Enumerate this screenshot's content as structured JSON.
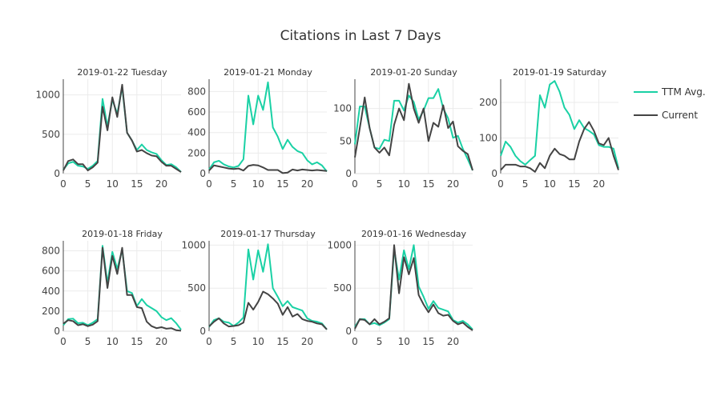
{
  "chart_data": {
    "type": "line",
    "title": "Citations in Last 7 Days",
    "legend": {
      "placement": "top-right",
      "entries": [
        {
          "name": "TTM Avg.",
          "color": "#1ad1a5"
        },
        {
          "name": "Current",
          "color": "#444444"
        }
      ]
    },
    "x": [
      0,
      1,
      2,
      3,
      4,
      5,
      6,
      7,
      8,
      9,
      10,
      11,
      12,
      13,
      14,
      15,
      16,
      17,
      18,
      19,
      20,
      21,
      22,
      23,
      24
    ],
    "xticks": [
      0,
      5,
      10,
      15,
      20
    ],
    "grid": true,
    "panels": [
      {
        "title": "2019-01-22 Tuesday",
        "ylim": [
          0,
          1200
        ],
        "yticks": [
          0,
          500,
          1000
        ],
        "series": [
          {
            "name": "TTM Avg.",
            "values": [
              50,
              130,
              150,
              100,
              90,
              60,
              100,
              160,
              950,
              600,
              940,
              760,
              1100,
              520,
              420,
              300,
              370,
              300,
              270,
              250,
              170,
              110,
              120,
              80,
              20
            ]
          },
          {
            "name": "Current",
            "values": [
              40,
              160,
              180,
              120,
              120,
              40,
              80,
              140,
              850,
              550,
              970,
              720,
              1130,
              520,
              420,
              280,
              300,
              260,
              230,
              220,
              150,
              100,
              100,
              60,
              20
            ]
          }
        ]
      },
      {
        "title": "2019-01-21 Monday",
        "ylim": [
          0,
          920
        ],
        "yticks": [
          0,
          200,
          400,
          600,
          800
        ],
        "series": [
          {
            "name": "TTM Avg.",
            "values": [
              40,
              110,
              125,
              90,
              70,
              60,
              75,
              140,
              760,
              480,
              760,
              620,
              890,
              450,
              360,
              240,
              330,
              260,
              220,
              200,
              130,
              90,
              110,
              80,
              20
            ]
          },
          {
            "name": "Current",
            "values": [
              30,
              80,
              70,
              60,
              50,
              45,
              50,
              30,
              75,
              85,
              80,
              60,
              35,
              35,
              35,
              5,
              10,
              40,
              30,
              40,
              35,
              30,
              35,
              30,
              25
            ]
          }
        ]
      },
      {
        "title": "2019-01-20 Sunday",
        "ylim": [
          0,
          145
        ],
        "yticks": [
          0,
          50,
          100
        ],
        "series": [
          {
            "name": "TTM Avg.",
            "values": [
              45,
              103,
              103,
              70,
              40,
              38,
              52,
              50,
              112,
              112,
              97,
              120,
              110,
              83,
              97,
              116,
              116,
              130,
              100,
              85,
              55,
              58,
              38,
              22,
              5
            ]
          },
          {
            "name": "Current",
            "values": [
              25,
              70,
              117,
              70,
              40,
              32,
              40,
              28,
              75,
              100,
              82,
              138,
              100,
              78,
              100,
              50,
              78,
              72,
              105,
              70,
              80,
              42,
              35,
              30,
              5
            ]
          }
        ]
      },
      {
        "title": "2019-01-19 Saturday",
        "ylim": [
          0,
          265
        ],
        "yticks": [
          0,
          100,
          200
        ],
        "series": [
          {
            "name": "TTM Avg.",
            "values": [
              50,
              90,
              75,
              50,
              35,
              25,
              38,
              50,
              220,
              185,
              250,
              260,
              230,
              185,
              165,
              125,
              150,
              128,
              120,
              110,
              80,
              75,
              75,
              70,
              15
            ]
          },
          {
            "name": "Current",
            "values": [
              10,
              25,
              25,
              25,
              20,
              20,
              15,
              5,
              30,
              15,
              50,
              70,
              55,
              50,
              40,
              40,
              90,
              125,
              145,
              120,
              85,
              80,
              100,
              50,
              10
            ]
          }
        ]
      },
      {
        "title": "2019-01-18 Friday",
        "ylim": [
          0,
          900
        ],
        "yticks": [
          0,
          200,
          400,
          600,
          800
        ],
        "series": [
          {
            "name": "TTM Avg.",
            "values": [
              60,
              120,
              125,
              80,
              85,
              60,
              85,
              120,
              850,
              480,
              790,
              620,
              810,
              400,
              380,
              250,
              320,
              260,
              230,
              200,
              140,
              110,
              130,
              80,
              15
            ]
          },
          {
            "name": "Current",
            "values": [
              75,
              110,
              100,
              60,
              70,
              50,
              65,
              100,
              830,
              430,
              750,
              570,
              830,
              360,
              360,
              240,
              230,
              95,
              50,
              30,
              40,
              25,
              30,
              10,
              5
            ]
          }
        ]
      },
      {
        "title": "2019-01-17 Thursday",
        "ylim": [
          0,
          1050
        ],
        "yticks": [
          0,
          500,
          1000
        ],
        "series": [
          {
            "name": "TTM Avg.",
            "values": [
              50,
              130,
              150,
              110,
              100,
              60,
              100,
              160,
              950,
              600,
              940,
              690,
              1010,
              500,
              400,
              290,
              350,
              280,
              260,
              240,
              150,
              120,
              110,
              90,
              20
            ]
          },
          {
            "name": "Current",
            "values": [
              55,
              110,
              150,
              90,
              55,
              60,
              70,
              100,
              330,
              250,
              340,
              460,
              430,
              380,
              320,
              190,
              280,
              170,
              200,
              140,
              120,
              110,
              90,
              80,
              20
            ]
          }
        ]
      },
      {
        "title": "2019-01-16 Wednesday",
        "ylim": [
          0,
          1050
        ],
        "yticks": [
          0,
          500,
          1000
        ],
        "series": [
          {
            "name": "TTM Avg.",
            "values": [
              50,
              140,
              140,
              80,
              95,
              70,
              100,
              140,
              950,
              600,
              940,
              720,
              1000,
              520,
              400,
              260,
              350,
              270,
              250,
              230,
              130,
              100,
              120,
              80,
              20
            ]
          },
          {
            "name": "Current",
            "values": [
              30,
              140,
              130,
              80,
              140,
              80,
              110,
              150,
              1000,
              440,
              860,
              660,
              850,
              420,
              310,
              220,
              310,
              210,
              180,
              190,
              120,
              80,
              100,
              50,
              10
            ]
          }
        ]
      }
    ]
  }
}
